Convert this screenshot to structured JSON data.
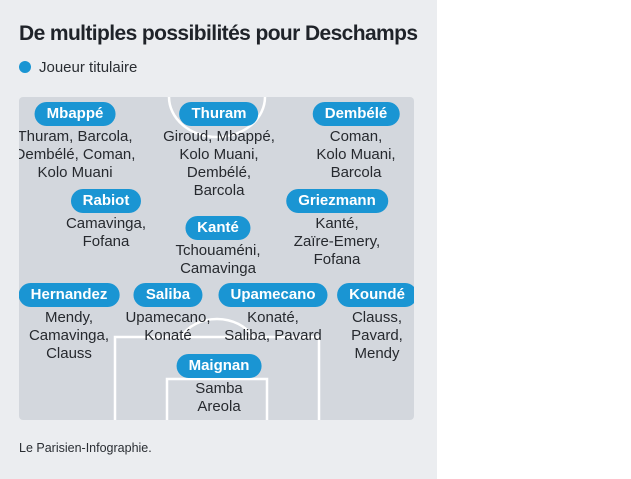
{
  "title": "De multiples possibilités pour Deschamps",
  "legend": {
    "label": "Joueur titulaire",
    "color": "#1a95d3"
  },
  "players": [
    {
      "id": "mbappe",
      "name": "Mbappé",
      "alternatives": [
        "Thuram, Barcola,",
        "Dembélé, Coman,",
        "Kolo Muani"
      ]
    },
    {
      "id": "thuram",
      "name": "Thuram",
      "alternatives": [
        "Giroud, Mbappé,",
        "Kolo Muani,",
        "Dembélé,",
        "Barcola"
      ]
    },
    {
      "id": "dembele",
      "name": "Dembélé",
      "alternatives": [
        "Coman,",
        "Kolo Muani,",
        "Barcola"
      ]
    },
    {
      "id": "rabiot",
      "name": "Rabiot",
      "alternatives": [
        "Camavinga,",
        "Fofana"
      ]
    },
    {
      "id": "kante",
      "name": "Kanté",
      "alternatives": [
        "Tchouaméni,",
        "Camavinga"
      ]
    },
    {
      "id": "griezmann",
      "name": "Griezmann",
      "alternatives": [
        "Kanté,",
        "Zaïre-Emery,",
        "Fofana"
      ]
    },
    {
      "id": "hernandez",
      "name": "Hernandez",
      "alternatives": [
        "Mendy,",
        "Camavinga,",
        "Clauss"
      ]
    },
    {
      "id": "saliba",
      "name": "Saliba",
      "alternatives": [
        "Upamecano,",
        "Konaté"
      ]
    },
    {
      "id": "upamecano",
      "name": "Upamecano",
      "alternatives": [
        "Konaté,",
        "Saliba, Pavard"
      ]
    },
    {
      "id": "konde",
      "name": "Koundé",
      "alternatives": [
        "Clauss,",
        "Pavard,",
        "Mendy"
      ]
    },
    {
      "id": "maignan",
      "name": "Maignan",
      "alternatives": [
        "Samba",
        "Areola"
      ]
    }
  ],
  "source": "Le Parisien-Infographie."
}
